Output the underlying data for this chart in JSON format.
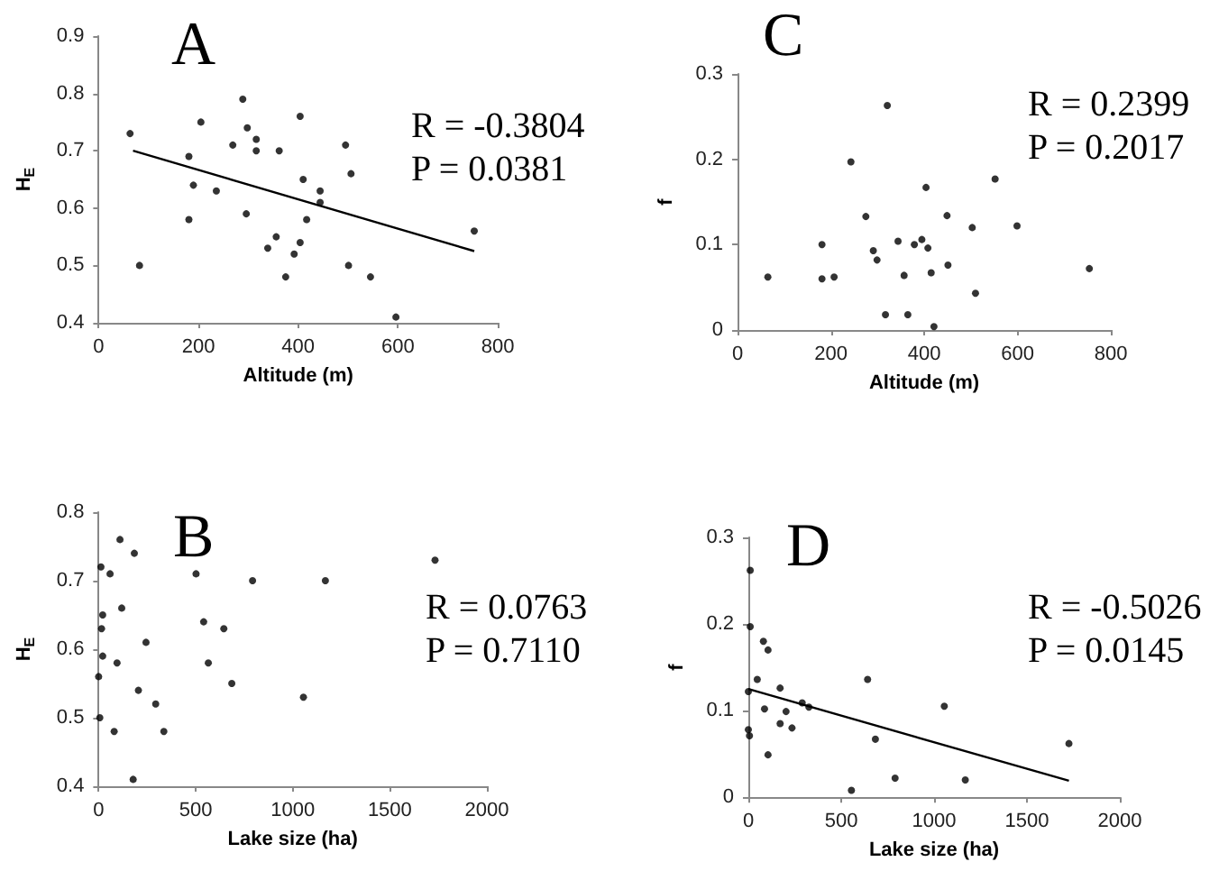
{
  "chart_data": [
    {
      "type": "scatter",
      "title": "A",
      "xlabel": "Altitude (m)",
      "ylabel": "H$_{E}$",
      "xlim": [
        0,
        800
      ],
      "xticks": [
        0,
        200,
        400,
        600,
        800
      ],
      "ylim": [
        0.4,
        0.9
      ],
      "yticks": [
        0.4,
        0.5,
        0.6,
        0.7,
        0.8,
        0.9
      ],
      "grid": false,
      "marker": "circle",
      "annotations": [
        "R = -0.3804",
        "P = 0.0381"
      ],
      "series": [
        {
          "color": "#000000",
          "x": [
            63,
            82,
            181,
            181,
            190,
            205,
            236,
            269,
            289,
            298,
            296,
            316,
            316,
            339,
            356,
            362,
            375,
            392,
            404,
            404,
            410,
            417,
            444,
            444,
            495,
            501,
            506,
            545,
            596,
            753
          ],
          "values": [
            0.73,
            0.5,
            0.69,
            0.58,
            0.64,
            0.75,
            0.63,
            0.71,
            0.79,
            0.74,
            0.59,
            0.72,
            0.7,
            0.53,
            0.55,
            0.7,
            0.48,
            0.52,
            0.76,
            0.54,
            0.65,
            0.58,
            0.63,
            0.61,
            0.71,
            0.5,
            0.66,
            0.48,
            0.41,
            0.56
          ]
        },
        {
          "type": "line",
          "marker": "none",
          "color": "#000000",
          "x": [
            69,
            753
          ],
          "values": [
            0.7,
            0.525
          ]
        }
      ]
    },
    {
      "type": "scatter",
      "title": "C",
      "xlabel": "Altitude (m)",
      "ylabel": "f",
      "xlim": [
        0,
        800
      ],
      "xticks": [
        0,
        200,
        400,
        600,
        800
      ],
      "ylim": [
        0,
        0.3
      ],
      "yticks": [
        0,
        0.1,
        0.2,
        0.3
      ],
      "grid": false,
      "marker": "circle",
      "annotations": [
        "R = 0.2399",
        "P = 0.2017"
      ],
      "series": [
        {
          "color": "#000000",
          "x": [
            65,
            181,
            181,
            207,
            243,
            275,
            291,
            299,
            317,
            321,
            344,
            357,
            365,
            379,
            395,
            404,
            408,
            415,
            421,
            449,
            451,
            503,
            510,
            552,
            599,
            754
          ],
          "values": [
            0.062,
            0.1,
            0.06,
            0.062,
            0.197,
            0.133,
            0.093,
            0.082,
            0.018,
            0.263,
            0.104,
            0.064,
            0.018,
            0.1,
            0.106,
            0.167,
            0.096,
            0.067,
            0.004,
            0.134,
            0.076,
            0.12,
            0.043,
            0.177,
            0.122,
            0.072
          ]
        }
      ]
    },
    {
      "type": "scatter",
      "title": "B",
      "xlabel": "Lake size (ha)",
      "ylabel": "H$_{E}$",
      "xlim": [
        0,
        2000
      ],
      "xticks": [
        0,
        500,
        1000,
        1500,
        2000
      ],
      "ylim": [
        0.4,
        0.8
      ],
      "yticks": [
        0.4,
        0.5,
        0.6,
        0.7,
        0.8
      ],
      "grid": false,
      "marker": "circle",
      "annotations": [
        "R = 0.0763",
        "P = 0.7110"
      ],
      "series": [
        {
          "color": "#000000",
          "x": [
            6,
            0,
            12,
            21,
            15,
            21,
            59,
            80,
            95,
            110,
            119,
            178,
            184,
            205,
            244,
            294,
            336,
            502,
            541,
            565,
            645,
            686,
            793,
            1055,
            1168,
            1733
          ],
          "values": [
            0.5,
            0.56,
            0.72,
            0.65,
            0.63,
            0.59,
            0.71,
            0.48,
            0.58,
            0.76,
            0.66,
            0.41,
            0.74,
            0.54,
            0.61,
            0.52,
            0.48,
            0.71,
            0.64,
            0.58,
            0.63,
            0.55,
            0.7,
            0.53,
            0.7,
            0.73
          ]
        }
      ]
    },
    {
      "type": "scatter",
      "title": "D",
      "xlabel": "Lake size (ha)",
      "ylabel": "f",
      "xlim": [
        0,
        2000
      ],
      "xticks": [
        0,
        500,
        1000,
        1500,
        2000
      ],
      "ylim": [
        0,
        0.3
      ],
      "yticks": [
        0,
        0.1,
        0.2,
        0.3
      ],
      "grid": false,
      "marker": "circle",
      "annotations": [
        "R = -0.5026",
        "P = 0.0145"
      ],
      "series": [
        {
          "color": "#000000",
          "x": [
            10,
            10,
            0,
            0,
            6,
            48,
            81,
            87,
            106,
            106,
            171,
            171,
            203,
            235,
            290,
            326,
            555,
            642,
            684,
            790,
            1055,
            1168,
            1726
          ],
          "values": [
            0.262,
            0.197,
            0.122,
            0.078,
            0.071,
            0.136,
            0.18,
            0.102,
            0.17,
            0.049,
            0.126,
            0.085,
            0.099,
            0.08,
            0.109,
            0.104,
            0.008,
            0.136,
            0.067,
            0.022,
            0.105,
            0.02,
            0.062
          ]
        },
        {
          "type": "line",
          "marker": "none",
          "color": "#000000",
          "x": [
            0,
            1726
          ],
          "values": [
            0.125,
            0.019
          ]
        }
      ]
    }
  ]
}
